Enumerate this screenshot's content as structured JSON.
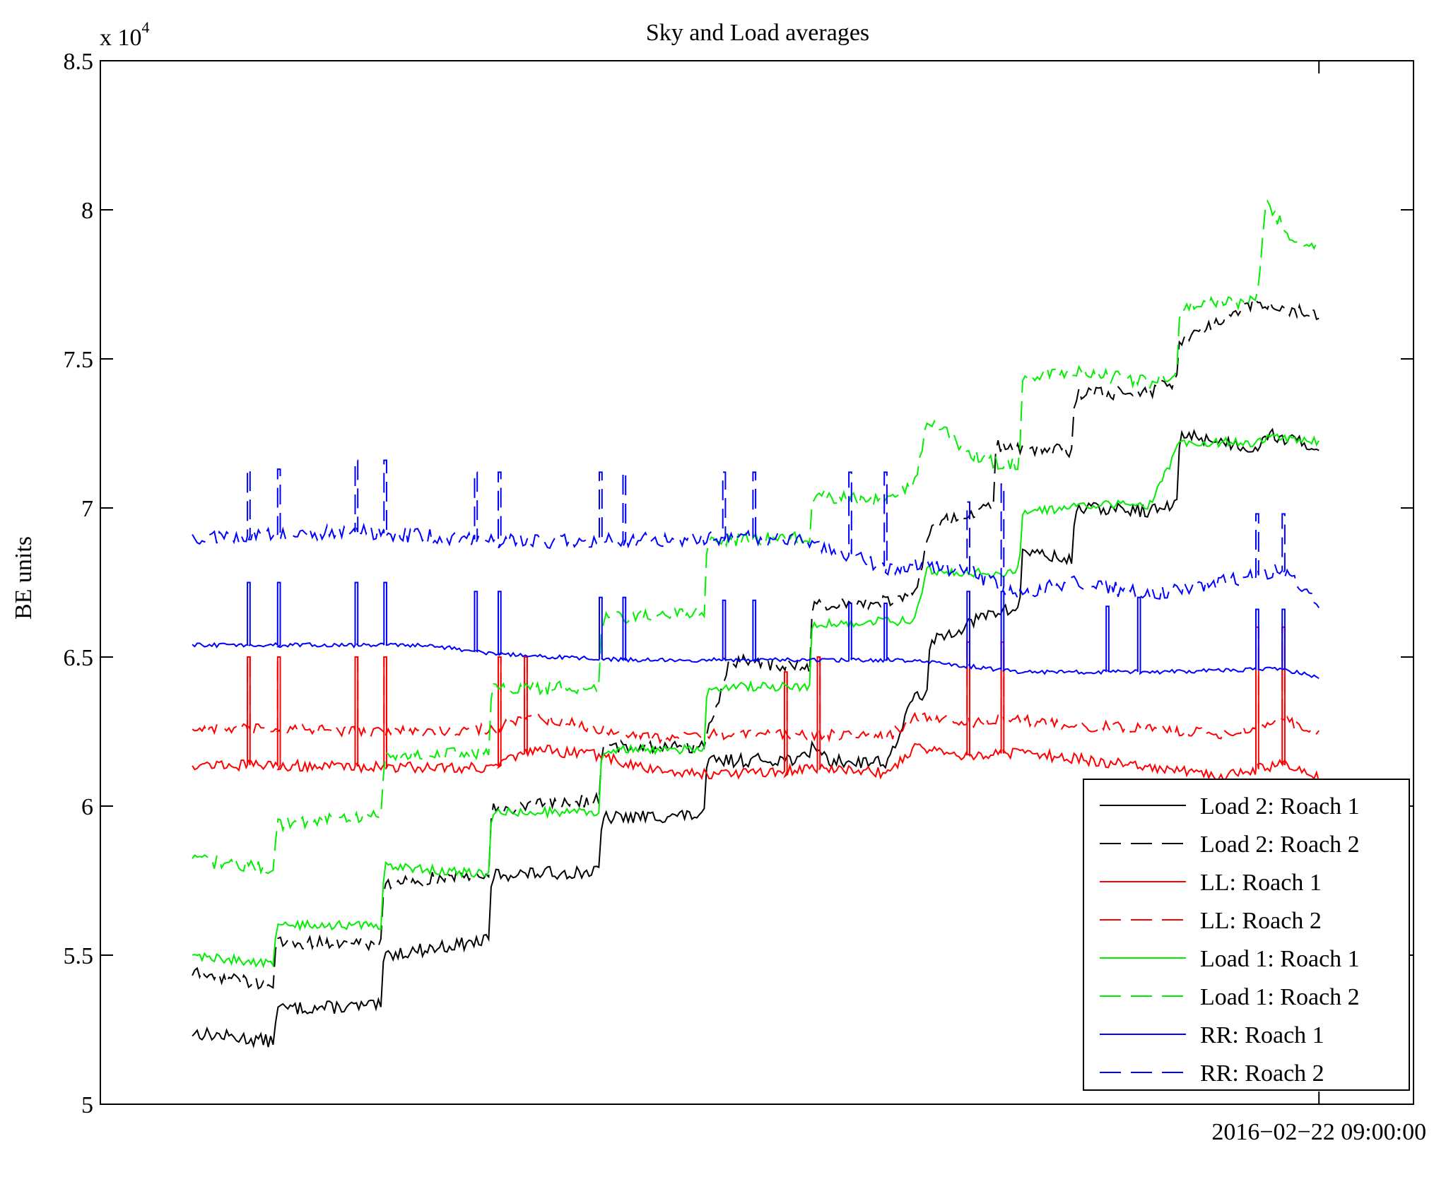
{
  "chart_data": {
    "type": "line",
    "title": "Sky and Load averages",
    "ylabel": "BE units",
    "xlabel": "",
    "y_exponent_label": "x 10",
    "y_exponent": "4",
    "ylim": [
      50000,
      85000
    ],
    "xlim": [
      0,
      1
    ],
    "y_ticks": [
      50000,
      55000,
      60000,
      65000,
      70000,
      75000,
      80000,
      85000
    ],
    "y_tick_labels": [
      "5",
      "5.5",
      "6",
      "6.5",
      "7",
      "7.5",
      "8",
      "8.5"
    ],
    "x_ticks": [
      0.928
    ],
    "x_tick_labels": [
      "2016−02−22 09:00:00"
    ],
    "grid": false,
    "legend_position": "bottom-right",
    "series": [
      {
        "name": "Load 2: Roach 1",
        "color": "#000000",
        "dash": "solid",
        "x": [
          0.07,
          0.132,
          0.134,
          0.214,
          0.216,
          0.296,
          0.298,
          0.38,
          0.382,
          0.46,
          0.462,
          0.54,
          0.542,
          0.554,
          0.6,
          0.62,
          0.63,
          0.632,
          0.68,
          0.7,
          0.702,
          0.74,
          0.742,
          0.8,
          0.82,
          0.822,
          0.88,
          0.888,
          0.928
        ],
        "y": [
          52400,
          52100,
          53200,
          53300,
          55000,
          55500,
          57700,
          57800,
          59600,
          59700,
          61500,
          61600,
          62200,
          61500,
          61500,
          63700,
          63800,
          65500,
          66500,
          66600,
          68600,
          68200,
          70000,
          69900,
          70100,
          72500,
          72000,
          72500,
          72000
        ],
        "noise": 220
      },
      {
        "name": "Load 2: Roach 2",
        "color": "#000000",
        "dash": "dashed",
        "x": [
          0.07,
          0.132,
          0.134,
          0.214,
          0.216,
          0.296,
          0.298,
          0.38,
          0.382,
          0.46,
          0.462,
          0.48,
          0.54,
          0.542,
          0.6,
          0.62,
          0.63,
          0.632,
          0.66,
          0.68,
          0.682,
          0.74,
          0.742,
          0.8,
          0.82,
          0.822,
          0.88,
          0.888,
          0.928
        ],
        "y": [
          54400,
          54000,
          55400,
          55400,
          57400,
          57800,
          59900,
          60200,
          62000,
          62000,
          62400,
          64900,
          64600,
          66700,
          66900,
          67100,
          68800,
          69400,
          69800,
          70000,
          72100,
          71900,
          73800,
          73900,
          74300,
          75600,
          76900,
          76800,
          76500
        ],
        "noise": 220
      },
      {
        "name": "LL: Roach 1",
        "color": "#ff0000",
        "dash": "solid",
        "x": [
          0.07,
          0.25,
          0.3,
          0.33,
          0.38,
          0.42,
          0.46,
          0.5,
          0.56,
          0.6,
          0.62,
          0.66,
          0.7,
          0.74,
          0.8,
          0.85,
          0.9,
          0.928
        ],
        "y": [
          61400,
          61300,
          61300,
          61900,
          61700,
          61200,
          61100,
          61100,
          61300,
          61100,
          62000,
          61700,
          61800,
          61600,
          61300,
          61000,
          61400,
          61000
        ],
        "noise": 180,
        "spikes": [
          {
            "x": 0.112,
            "to": 65000
          },
          {
            "x": 0.135,
            "to": 65000
          },
          {
            "x": 0.194,
            "to": 65000
          },
          {
            "x": 0.216,
            "to": 65000
          },
          {
            "x": 0.303,
            "to": 65000
          },
          {
            "x": 0.323,
            "to": 65000
          },
          {
            "x": 0.521,
            "to": 64500
          },
          {
            "x": 0.546,
            "to": 65000
          },
          {
            "x": 0.66,
            "to": 65500
          },
          {
            "x": 0.686,
            "to": 65500
          },
          {
            "x": 0.88,
            "to": 66000
          },
          {
            "x": 0.9,
            "to": 66000
          }
        ]
      },
      {
        "name": "LL: Roach 2",
        "color": "#ff0000",
        "dash": "dashed",
        "x": [
          0.07,
          0.25,
          0.3,
          0.33,
          0.38,
          0.42,
          0.46,
          0.5,
          0.56,
          0.6,
          0.62,
          0.66,
          0.7,
          0.74,
          0.8,
          0.85,
          0.9,
          0.928
        ],
        "y": [
          62600,
          62500,
          62600,
          63000,
          62600,
          62300,
          62400,
          62400,
          62400,
          62300,
          63000,
          62800,
          62900,
          62700,
          62600,
          62400,
          62900,
          62400
        ],
        "noise": 180,
        "spikes": [
          {
            "x": 0.112,
            "to": 65000
          },
          {
            "x": 0.135,
            "to": 65000
          },
          {
            "x": 0.194,
            "to": 65000
          },
          {
            "x": 0.216,
            "to": 65000
          },
          {
            "x": 0.303,
            "to": 65000
          },
          {
            "x": 0.323,
            "to": 65000
          },
          {
            "x": 0.521,
            "to": 64500
          },
          {
            "x": 0.546,
            "to": 65000
          },
          {
            "x": 0.66,
            "to": 65500
          },
          {
            "x": 0.686,
            "to": 65500
          },
          {
            "x": 0.88,
            "to": 66000
          },
          {
            "x": 0.9,
            "to": 66000
          }
        ]
      },
      {
        "name": "Load 1: Roach 1",
        "color": "#00ee00",
        "dash": "solid",
        "x": [
          0.07,
          0.132,
          0.134,
          0.214,
          0.216,
          0.296,
          0.298,
          0.38,
          0.382,
          0.46,
          0.462,
          0.54,
          0.542,
          0.6,
          0.62,
          0.63,
          0.632,
          0.68,
          0.7,
          0.702,
          0.74,
          0.742,
          0.8,
          0.82,
          0.822,
          0.88,
          0.888,
          0.928
        ],
        "y": [
          55000,
          54700,
          56000,
          56000,
          58000,
          57700,
          59800,
          59800,
          61900,
          61900,
          64000,
          64000,
          66100,
          66200,
          66200,
          68100,
          67900,
          67800,
          67900,
          69900,
          70000,
          70100,
          70100,
          72000,
          72200,
          72200,
          72400,
          72200
        ],
        "noise": 150
      },
      {
        "name": "Load 1: Roach 2",
        "color": "#00ee00",
        "dash": "dashed",
        "x": [
          0.07,
          0.132,
          0.134,
          0.214,
          0.216,
          0.296,
          0.298,
          0.38,
          0.382,
          0.46,
          0.462,
          0.54,
          0.542,
          0.6,
          0.62,
          0.63,
          0.632,
          0.66,
          0.68,
          0.7,
          0.702,
          0.74,
          0.742,
          0.8,
          0.82,
          0.822,
          0.88,
          0.888,
          0.91,
          0.928
        ],
        "y": [
          58200,
          57900,
          59400,
          59700,
          61700,
          61800,
          63900,
          64000,
          66300,
          66500,
          68900,
          69000,
          70400,
          70200,
          70800,
          72900,
          73000,
          71900,
          71500,
          71500,
          74400,
          74600,
          74600,
          74200,
          74500,
          76800,
          76900,
          80200,
          78900,
          78700
        ],
        "noise": 220
      },
      {
        "name": "RR: Roach 1",
        "color": "#0000ff",
        "dash": "solid",
        "x": [
          0.07,
          0.15,
          0.25,
          0.3,
          0.4,
          0.5,
          0.6,
          0.64,
          0.7,
          0.8,
          0.9,
          0.928
        ],
        "y": [
          65400,
          65400,
          65400,
          65100,
          64900,
          64900,
          64900,
          64800,
          64500,
          64500,
          64600,
          64300
        ],
        "noise": 70,
        "spikes": [
          {
            "x": 0.112,
            "to": 67500
          },
          {
            "x": 0.135,
            "to": 67500
          },
          {
            "x": 0.194,
            "to": 67500
          },
          {
            "x": 0.216,
            "to": 67500
          },
          {
            "x": 0.285,
            "to": 67200
          },
          {
            "x": 0.303,
            "to": 67200
          },
          {
            "x": 0.38,
            "to": 67000
          },
          {
            "x": 0.398,
            "to": 67000
          },
          {
            "x": 0.474,
            "to": 66900
          },
          {
            "x": 0.497,
            "to": 66900
          },
          {
            "x": 0.57,
            "to": 66800
          },
          {
            "x": 0.597,
            "to": 66800
          },
          {
            "x": 0.66,
            "to": 67200
          },
          {
            "x": 0.686,
            "to": 67200
          },
          {
            "x": 0.766,
            "to": 66700
          },
          {
            "x": 0.79,
            "to": 67000
          },
          {
            "x": 0.88,
            "to": 66600
          },
          {
            "x": 0.9,
            "to": 66600
          }
        ]
      },
      {
        "name": "RR: Roach 2",
        "color": "#0000ff",
        "dash": "dashed",
        "x": [
          0.07,
          0.2,
          0.3,
          0.4,
          0.46,
          0.5,
          0.54,
          0.6,
          0.62,
          0.66,
          0.7,
          0.74,
          0.8,
          0.85,
          0.9,
          0.928
        ],
        "y": [
          69000,
          69200,
          68900,
          68900,
          69000,
          69000,
          68900,
          68000,
          68100,
          67900,
          67100,
          67500,
          67100,
          67500,
          67900,
          66800
        ],
        "noise": 250,
        "spikes": [
          {
            "x": 0.112,
            "to": 71300
          },
          {
            "x": 0.135,
            "to": 71300
          },
          {
            "x": 0.194,
            "to": 71600
          },
          {
            "x": 0.216,
            "to": 71600
          },
          {
            "x": 0.285,
            "to": 71200
          },
          {
            "x": 0.303,
            "to": 71200
          },
          {
            "x": 0.38,
            "to": 71200
          },
          {
            "x": 0.398,
            "to": 71200
          },
          {
            "x": 0.474,
            "to": 71200
          },
          {
            "x": 0.497,
            "to": 71200
          },
          {
            "x": 0.57,
            "to": 71200
          },
          {
            "x": 0.597,
            "to": 71200
          },
          {
            "x": 0.66,
            "to": 70200
          },
          {
            "x": 0.686,
            "to": 70800
          },
          {
            "x": 0.88,
            "to": 69800
          },
          {
            "x": 0.9,
            "to": 69800
          }
        ]
      }
    ]
  }
}
